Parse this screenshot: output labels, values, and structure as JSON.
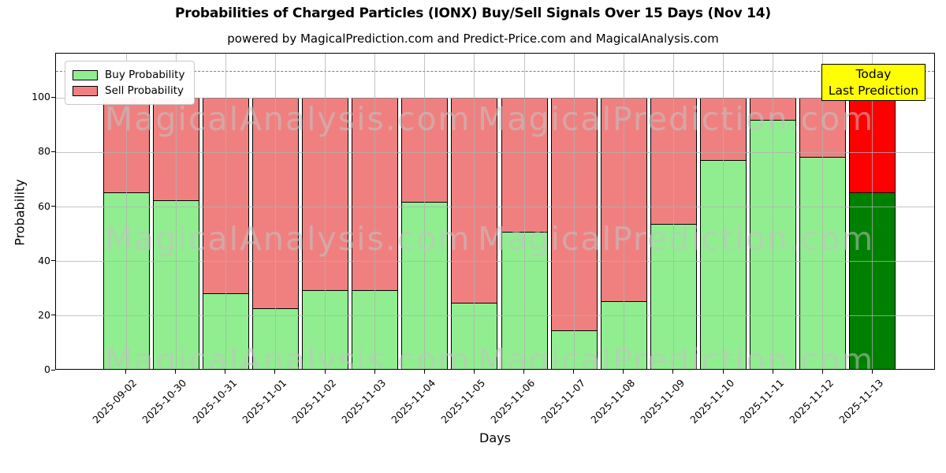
{
  "chart_data": {
    "type": "bar",
    "stacked": true,
    "title": "Probabilities of Charged Particles (IONX) Buy/Sell Signals Over 15 Days (Nov 14)",
    "subtitle": "powered by MagicalPrediction.com and Predict-Price.com and MagicalAnalysis.com",
    "xlabel": "Days",
    "ylabel": "Probability",
    "categories": [
      "2025-09-02",
      "2025-10-30",
      "2025-10-31",
      "2025-11-01",
      "2025-11-02",
      "2025-11-03",
      "2025-11-04",
      "2025-11-05",
      "2025-11-06",
      "2025-11-07",
      "2025-11-08",
      "2025-11-09",
      "2025-11-10",
      "2025-11-11",
      "2025-11-12",
      "2025-11-13"
    ],
    "series": [
      {
        "name": "Buy Probability",
        "color": "#90EE90",
        "values": [
          65.5,
          62.5,
          28.5,
          23,
          29.5,
          29.5,
          62,
          25,
          51,
          15,
          25.5,
          54,
          77.5,
          92,
          78.5,
          65.5
        ]
      },
      {
        "name": "Sell Probability",
        "color": "#F08080",
        "values": [
          34.5,
          37.5,
          71.5,
          77,
          70.5,
          70.5,
          38,
          75,
          49,
          85,
          74.5,
          46,
          22.5,
          8,
          21.5,
          34.5
        ]
      }
    ],
    "today_bar": {
      "category": "2025-11-13",
      "buy_color": "#008000",
      "sell_color": "#FF0000"
    },
    "yticks": [
      0,
      20,
      40,
      60,
      80,
      100
    ],
    "ylim": [
      0,
      116.3
    ],
    "dashed_line_y": 110,
    "grid": true,
    "legend_position": "upper left",
    "annotation": {
      "line1": "Today",
      "line2": "Last Prediction",
      "bg_color": "#FFFF00"
    },
    "watermarks": [
      "MagicalAnalysis.com",
      "MagicalPrediction.com"
    ]
  }
}
